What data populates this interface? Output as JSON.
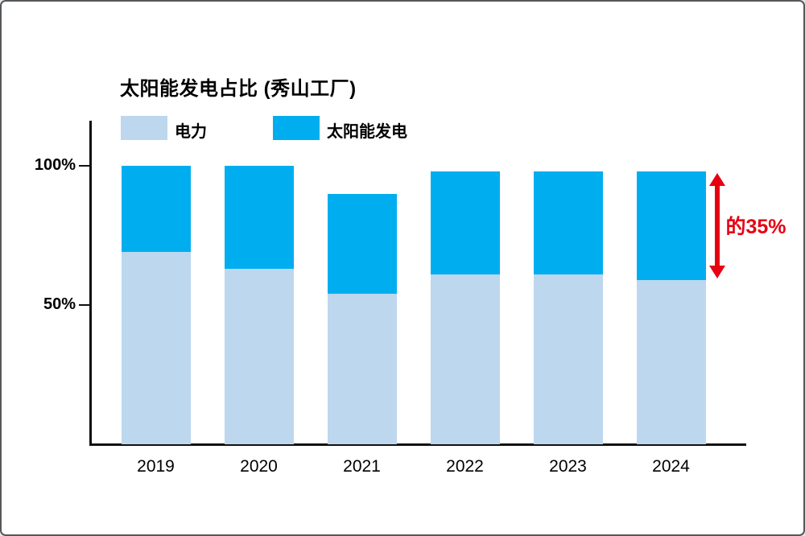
{
  "window": {
    "background": "#ffffff",
    "border_color": "#55585a"
  },
  "chart": {
    "title": "太阳能发电占比 (秀山工厂)",
    "legend": {
      "electricity": {
        "label": "电力",
        "color": "#BDD7EE"
      },
      "solar": {
        "label": "太阳能发电",
        "color": "#00AEEF"
      }
    },
    "annotation": {
      "text": "的35%",
      "color": "#E60012"
    }
  },
  "chart_data": {
    "type": "bar",
    "stacked": true,
    "title": "太阳能发电占比 (秀山工厂)",
    "categories": [
      "2019",
      "2020",
      "2021",
      "2022",
      "2023",
      "2024"
    ],
    "series": [
      {
        "name": "电力",
        "color": "#BDD7EE",
        "values": [
          69,
          63,
          54,
          61,
          61,
          59
        ]
      },
      {
        "name": "太阳能发电",
        "color": "#00AEEF",
        "values": [
          31,
          37,
          36,
          37,
          37,
          39
        ]
      }
    ],
    "stack_totals_pct": [
      100,
      100,
      90,
      98,
      98,
      98
    ],
    "xlabel": "",
    "ylabel": "",
    "ylim": [
      0,
      100
    ],
    "y_ticks": [
      {
        "value": 100,
        "label": "100%"
      },
      {
        "value": 50,
        "label": "50%"
      }
    ],
    "grid": false,
    "legend_position": "top",
    "annotation": {
      "text": "的35%",
      "color": "#E60012",
      "category": "2024",
      "series": "太阳能发电"
    }
  }
}
